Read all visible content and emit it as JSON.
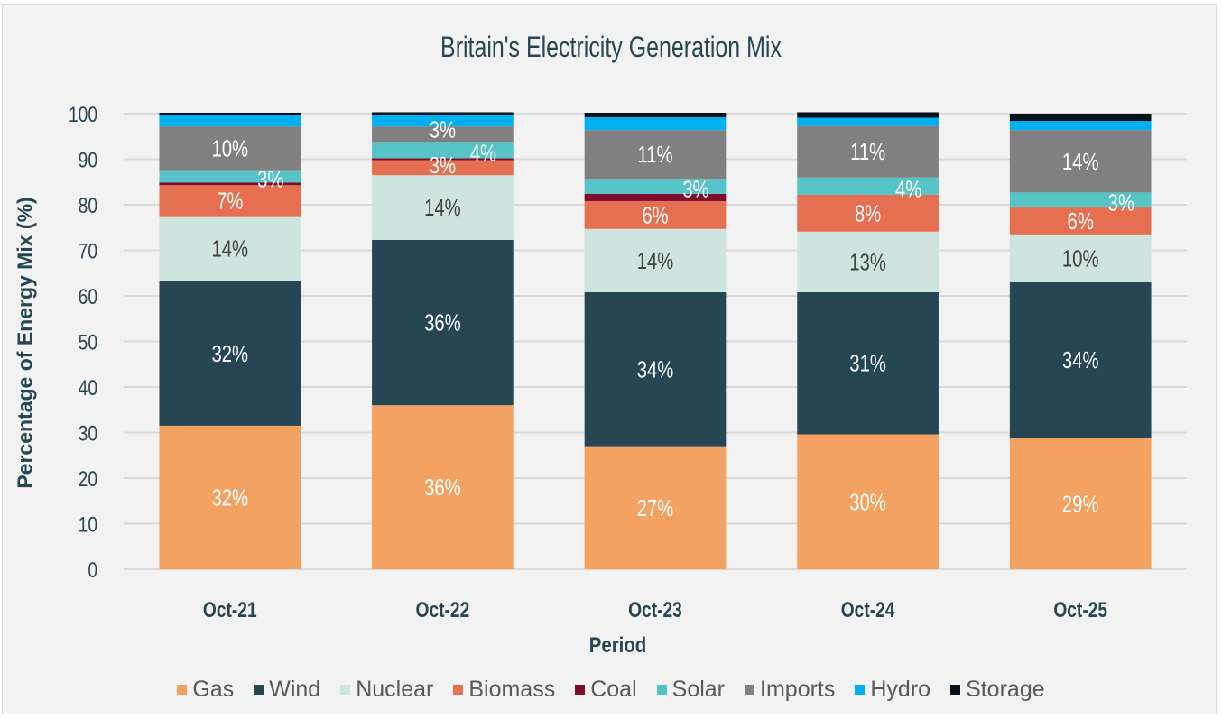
{
  "chart_data": {
    "type": "bar",
    "stacked": true,
    "title": "Britain's Electricity Generation Mix",
    "xlabel": "Period",
    "ylabel": "Percentage of Energy Mix (%)",
    "ylim": [
      0,
      100
    ],
    "yticks": [
      0,
      10,
      20,
      30,
      40,
      50,
      60,
      70,
      80,
      90,
      100
    ],
    "grid": true,
    "legend_position": "bottom",
    "categories": [
      "Oct-21",
      "Oct-22",
      "Oct-23",
      "Oct-24",
      "Oct-25"
    ],
    "series": [
      {
        "name": "Gas",
        "color": "#f4a261",
        "label_color": "#ffffff",
        "values": [
          31.5,
          36.0,
          27.0,
          29.6,
          28.8
        ],
        "labels": [
          "32%",
          "36%",
          "27%",
          "30%",
          "29%"
        ]
      },
      {
        "name": "Wind",
        "color": "#264653",
        "label_color": "#ffffff",
        "values": [
          31.7,
          36.3,
          33.8,
          31.2,
          34.2
        ],
        "labels": [
          "32%",
          "36%",
          "34%",
          "31%",
          "34%"
        ]
      },
      {
        "name": "Nuclear",
        "color": "#cee5df",
        "label_color": "#404040",
        "values": [
          14.3,
          14.2,
          13.9,
          13.3,
          10.5
        ],
        "labels": [
          "14%",
          "14%",
          "14%",
          "13%",
          "10%"
        ]
      },
      {
        "name": "Biomass",
        "color": "#e76f51",
        "label_color": "#ffffff",
        "values": [
          6.8,
          3.3,
          6.1,
          8.1,
          5.9
        ],
        "labels": [
          "7%",
          "3%",
          "6%",
          "8%",
          "6%"
        ]
      },
      {
        "name": "Coal",
        "color": "#7f0e2c",
        "label_color": "#ffffff",
        "values": [
          0.6,
          0.4,
          1.6,
          0.0,
          0.0
        ],
        "labels": [
          "",
          "",
          "",
          "",
          ""
        ]
      },
      {
        "name": "Solar",
        "color": "#56c4c6",
        "label_color": "#ffffff",
        "values": [
          2.7,
          3.6,
          3.3,
          3.8,
          3.3
        ],
        "labels": [
          "3%",
          "4%",
          "3%",
          "4%",
          "3%"
        ]
      },
      {
        "name": "Imports",
        "color": "#808080",
        "label_color": "#ffffff",
        "values": [
          9.6,
          3.4,
          10.7,
          11.3,
          13.7
        ],
        "labels": [
          "10%",
          "3%",
          "11%",
          "11%",
          "14%"
        ]
      },
      {
        "name": "Hydro",
        "color": "#00b0f0",
        "label_color": "#ffffff",
        "values": [
          2.4,
          2.4,
          2.8,
          1.8,
          2.0
        ],
        "labels": [
          "",
          "",
          "",
          "",
          ""
        ]
      },
      {
        "name": "Storage",
        "color": "#02131c",
        "label_color": "#ffffff",
        "values": [
          0.6,
          0.7,
          1.0,
          1.2,
          1.6
        ],
        "labels": [
          "",
          "",
          "",
          "",
          ""
        ]
      }
    ]
  }
}
